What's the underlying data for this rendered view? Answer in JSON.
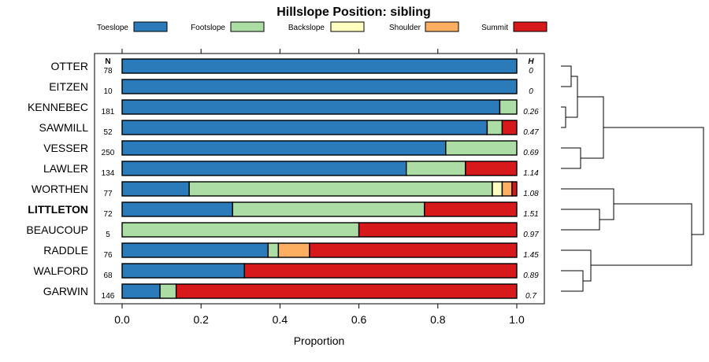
{
  "chart_data": {
    "type": "bar",
    "orientation": "horizontal",
    "stacked": true,
    "title": "Hillslope Position: sibling",
    "xlabel": "Proportion",
    "xlim": [
      0,
      1
    ],
    "xticks": [
      "0.0",
      "0.2",
      "0.4",
      "0.6",
      "0.8",
      "1.0"
    ],
    "xtick_values": [
      0,
      0.2,
      0.4,
      0.6,
      0.8,
      1.0
    ],
    "n_header": "N",
    "h_header": "H",
    "legend": [
      {
        "name": "Toeslope",
        "color": "#2b7bba"
      },
      {
        "name": "Footslope",
        "color": "#abdda4"
      },
      {
        "name": "Backslope",
        "color": "#ffffbf"
      },
      {
        "name": "Shoulder",
        "color": "#fdae61"
      },
      {
        "name": "Summit",
        "color": "#d7191c"
      }
    ],
    "rows": [
      {
        "label": "OTTER",
        "bold": false,
        "n": "78",
        "h": "0",
        "values": [
          1.0,
          0,
          0,
          0,
          0
        ]
      },
      {
        "label": "EITZEN",
        "bold": false,
        "n": "10",
        "h": "0",
        "values": [
          1.0,
          0,
          0,
          0,
          0
        ]
      },
      {
        "label": "KENNEBEC",
        "bold": false,
        "n": "181",
        "h": "0.26",
        "values": [
          0.957,
          0.043,
          0,
          0,
          0
        ]
      },
      {
        "label": "SAWMILL",
        "bold": false,
        "n": "52",
        "h": "0.47",
        "values": [
          0.925,
          0.038,
          0,
          0,
          0.037
        ]
      },
      {
        "label": "VESSER",
        "bold": false,
        "n": "250",
        "h": "0.69",
        "values": [
          0.82,
          0.18,
          0,
          0,
          0
        ]
      },
      {
        "label": "LAWLER",
        "bold": false,
        "n": "134",
        "h": "1.14",
        "values": [
          0.72,
          0.15,
          0,
          0,
          0.13
        ]
      },
      {
        "label": "WORTHEN",
        "bold": false,
        "n": "77",
        "h": "1.08",
        "values": [
          0.17,
          0.768,
          0.025,
          0.025,
          0.012
        ]
      },
      {
        "label": "LITTLETON",
        "bold": true,
        "n": "72",
        "h": "1.51",
        "values": [
          0.28,
          0.486,
          0,
          0,
          0.234
        ]
      },
      {
        "label": "BEAUCOUP",
        "bold": false,
        "n": "5",
        "h": "0.97",
        "values": [
          0,
          0.6,
          0,
          0,
          0.4
        ]
      },
      {
        "label": "RADDLE",
        "bold": false,
        "n": "76",
        "h": "1.45",
        "values": [
          0.37,
          0.026,
          0,
          0.079,
          0.525
        ]
      },
      {
        "label": "WALFORD",
        "bold": false,
        "n": "68",
        "h": "0.89",
        "values": [
          0.31,
          0,
          0,
          0,
          0.69
        ]
      },
      {
        "label": "GARWIN",
        "bold": false,
        "n": "146",
        "h": "0.7",
        "values": [
          0.096,
          0.041,
          0,
          0,
          0.863
        ]
      }
    ]
  }
}
